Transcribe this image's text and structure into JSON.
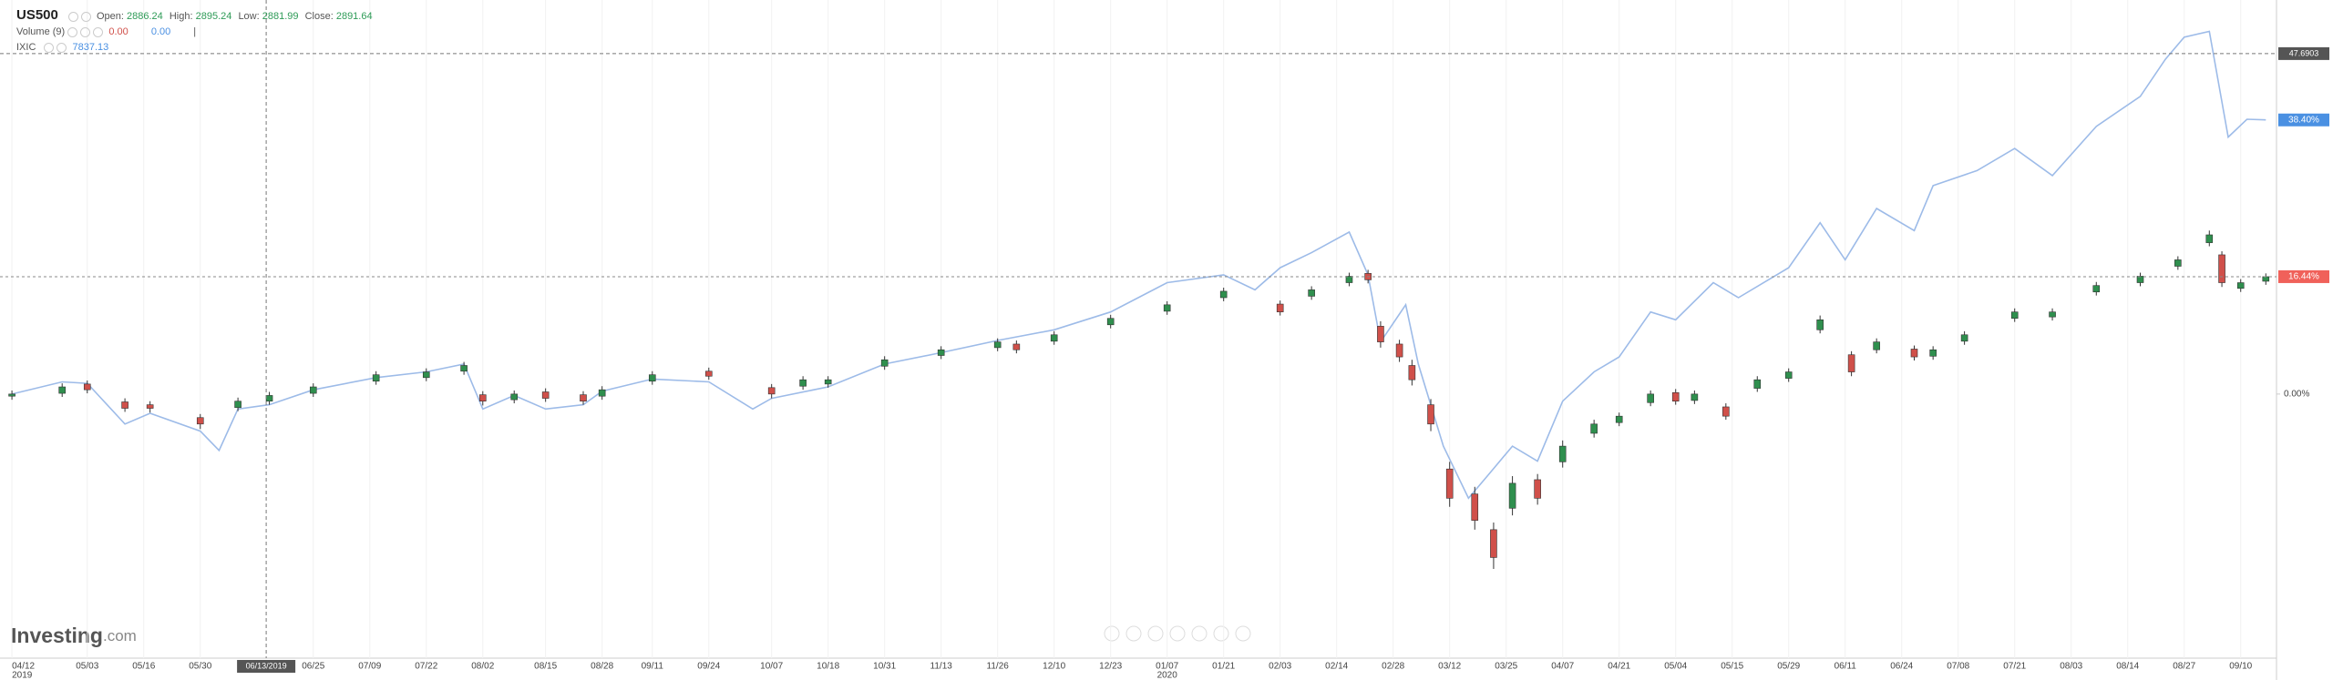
{
  "chart_data": {
    "type": "candlestick",
    "title": "US500",
    "header": {
      "open_label": "Open:",
      "open": 2886.24,
      "high_label": "High:",
      "high": 2895.24,
      "low_label": "Low:",
      "low": 2881.99,
      "close_label": "Close:",
      "close": 2891.64,
      "volume_name": "Volume (9)",
      "volume_values": [
        {
          "value": 0,
          "label": "0.00"
        },
        {
          "value": 0,
          "label": "0.00"
        }
      ],
      "separator": "|"
    },
    "logo_main": "Investing",
    "logo_suffix": ".com",
    "x": [
      0,
      8,
      12,
      18,
      22,
      30,
      36,
      41,
      48,
      58,
      66,
      72,
      75,
      80,
      85,
      91,
      94,
      102,
      111,
      121,
      126,
      130,
      139,
      148,
      157,
      160,
      166,
      175,
      184,
      193,
      202,
      207,
      213,
      216,
      218,
      221,
      223,
      226,
      229,
      233,
      236,
      239,
      243,
      247,
      252,
      256,
      261,
      265,
      268,
      273,
      278,
      283,
      288,
      293,
      297,
      303,
      306,
      311,
      319,
      325,
      332,
      339,
      345,
      350,
      352,
      355,
      359
    ],
    "open": [
      -0.3,
      0.1,
      1.4,
      -1.1,
      -1.5,
      -3.3,
      -1.9,
      -1.0,
      0.1,
      1.8,
      2.3,
      3.2,
      -0.1,
      -0.8,
      0.3,
      -0.1,
      -0.3,
      1.8,
      3.2,
      0.9,
      1.1,
      1.4,
      3.9,
      5.4,
      6.5,
      7.0,
      7.4,
      9.7,
      11.6,
      13.5,
      12.6,
      13.7,
      15.6,
      16.9,
      9.5,
      7.0,
      4.0,
      -1.5,
      -10.5,
      -14.0,
      -19.0,
      -16.0,
      -12.0,
      -9.5,
      -5.5,
      -4.0,
      -1.2,
      0.2,
      -0.9,
      -1.8,
      0.8,
      2.2,
      9.0,
      5.5,
      6.2,
      6.3,
      5.3,
      7.4,
      10.6,
      10.8,
      14.3,
      15.6,
      17.9,
      21.2,
      19.5,
      14.8,
      15.8
    ],
    "high": [
      0.5,
      1.5,
      1.9,
      -0.6,
      -1.0,
      -2.8,
      -0.5,
      0.3,
      1.5,
      3.2,
      3.6,
      4.5,
      0.4,
      0.5,
      0.8,
      0.4,
      1.1,
      3.2,
      3.7,
      1.4,
      2.5,
      2.5,
      5.3,
      6.7,
      7.8,
      7.5,
      8.8,
      11.1,
      13.0,
      14.9,
      13.1,
      15.1,
      17.0,
      17.4,
      10.2,
      7.6,
      4.8,
      -0.7,
      -9.5,
      -13.0,
      -18.0,
      -11.5,
      -11.2,
      -6.5,
      -3.6,
      -2.6,
      0.5,
      0.7,
      0.5,
      -1.3,
      2.5,
      3.6,
      11.0,
      6.0,
      7.8,
      6.8,
      6.7,
      8.8,
      12.0,
      12.0,
      15.7,
      17.0,
      19.3,
      22.9,
      20.0,
      16.1,
      16.9
    ],
    "low": [
      -0.8,
      -0.4,
      0.1,
      -2.5,
      -2.6,
      -4.9,
      -2.4,
      -1.5,
      -0.4,
      1.3,
      1.8,
      2.7,
      -1.6,
      -1.3,
      -1.1,
      -1.5,
      -0.8,
      1.3,
      2.0,
      -0.6,
      0.6,
      0.9,
      3.4,
      4.9,
      6.0,
      5.7,
      6.9,
      9.2,
      11.1,
      13.0,
      11.0,
      13.2,
      15.1,
      15.5,
      6.5,
      4.5,
      1.2,
      -5.2,
      -15.8,
      -19.0,
      -24.5,
      -17.0,
      -15.5,
      -10.3,
      -6.1,
      -4.5,
      -1.7,
      -1.5,
      -1.4,
      -3.6,
      0.3,
      1.7,
      8.5,
      2.5,
      5.7,
      4.7,
      4.8,
      6.9,
      10.1,
      10.3,
      13.8,
      15.1,
      17.4,
      20.7,
      15.0,
      14.3,
      15.3
    ],
    "close": [
      0,
      1,
      0.6,
      -2,
      -2,
      -4.2,
      -1,
      -0.2,
      1,
      2.7,
      3.1,
      4,
      -1,
      0,
      -0.6,
      -1,
      0.6,
      2.7,
      2.5,
      0,
      2,
      2,
      4.8,
      6.2,
      7.3,
      6.2,
      8.3,
      10.6,
      12.5,
      14.4,
      11.5,
      14.6,
      16.5,
      16,
      7.3,
      5.2,
      2,
      -4.2,
      -14.6,
      -17.7,
      -22.9,
      -12.5,
      -14.6,
      -7.3,
      -4.2,
      -3.1,
      0,
      -1,
      0,
      -3.1,
      2,
      3.1,
      10.4,
      3.1,
      7.3,
      5.2,
      6.2,
      8.3,
      11.5,
      11.5,
      15.2,
      16.5,
      18.8,
      22.3,
      15.6,
      15.6,
      16.44
    ],
    "close_last_label": "16.44%",
    "up_color": "#2f8f4e",
    "down_color": "#d0504a",
    "last_color": "#f0615a",
    "series": [
      {
        "name": "IXIC",
        "color": "#9dbbe8",
        "legend_value": 7837.13,
        "last_label": "38.40%",
        "badge_color": "#4a90e2",
        "x": [
          0,
          8,
          12,
          18,
          22,
          30,
          33,
          36,
          41,
          48,
          58,
          66,
          72,
          75,
          80,
          85,
          91,
          94,
          102,
          111,
          118,
          121,
          130,
          139,
          148,
          157,
          166,
          175,
          184,
          193,
          198,
          202,
          207,
          213,
          216,
          218,
          222,
          224,
          228,
          232,
          235,
          239,
          243,
          247,
          252,
          256,
          261,
          265,
          271,
          275,
          283,
          288,
          292,
          297,
          303,
          306,
          313,
          319,
          325,
          332,
          339,
          343,
          346,
          350,
          353,
          356,
          359
        ],
        "values": [
          0,
          1.7,
          1.5,
          -4.2,
          -2.7,
          -5.2,
          -7.9,
          -2.1,
          -1.5,
          0.6,
          2.3,
          3.1,
          4.2,
          -2.1,
          -0.2,
          -2.1,
          -1.5,
          0.4,
          2.1,
          1.7,
          -2.1,
          -0.6,
          1.0,
          4.2,
          5.8,
          7.5,
          9.0,
          11.5,
          15.6,
          16.7,
          14.6,
          17.7,
          19.8,
          22.7,
          16.7,
          7.3,
          12.5,
          4.2,
          -7.3,
          -14.6,
          -11.5,
          -7.3,
          -9.4,
          -1.0,
          3.1,
          5.2,
          11.5,
          10.4,
          15.6,
          13.5,
          17.7,
          24.0,
          18.8,
          26.0,
          22.9,
          29.2,
          31.3,
          34.4,
          30.6,
          37.5,
          41.7,
          46.9,
          50.0,
          50.8,
          36.0,
          38.5,
          38.4
        ]
      }
    ],
    "xlim": [
      -1.9,
      360.7
    ],
    "ylim": [
      -37,
      55.2
    ],
    "yticks": [
      {
        "value": 0,
        "label": "0.00%"
      }
    ],
    "xticks": [
      {
        "value": 0,
        "label": "04/12"
      },
      {
        "value": 12,
        "label": "05/03"
      },
      {
        "value": 21,
        "label": "05/16"
      },
      {
        "value": 30,
        "label": "05/30"
      },
      {
        "value": 48,
        "label": "06/25"
      },
      {
        "value": 57,
        "label": "07/09"
      },
      {
        "value": 66,
        "label": "07/22"
      },
      {
        "value": 75,
        "label": "08/02"
      },
      {
        "value": 85,
        "label": "08/15"
      },
      {
        "value": 94,
        "label": "08/28"
      },
      {
        "value": 102,
        "label": "09/11"
      },
      {
        "value": 111,
        "label": "09/24"
      },
      {
        "value": 121,
        "label": "10/07"
      },
      {
        "value": 130,
        "label": "10/18"
      },
      {
        "value": 139,
        "label": "10/31"
      },
      {
        "value": 148,
        "label": "11/13"
      },
      {
        "value": 157,
        "label": "11/26"
      },
      {
        "value": 166,
        "label": "12/10"
      },
      {
        "value": 175,
        "label": "12/23"
      },
      {
        "value": 184,
        "label": "01/07"
      },
      {
        "value": 193,
        "label": "01/21"
      },
      {
        "value": 202,
        "label": "02/03"
      },
      {
        "value": 211,
        "label": "02/14"
      },
      {
        "value": 220,
        "label": "02/28"
      },
      {
        "value": 229,
        "label": "03/12"
      },
      {
        "value": 238,
        "label": "03/25"
      },
      {
        "value": 247,
        "label": "04/07"
      },
      {
        "value": 256,
        "label": "04/21"
      },
      {
        "value": 265,
        "label": "05/04"
      },
      {
        "value": 274,
        "label": "05/15"
      },
      {
        "value": 283,
        "label": "05/29"
      },
      {
        "value": 292,
        "label": "06/11"
      },
      {
        "value": 301,
        "label": "06/24"
      },
      {
        "value": 310,
        "label": "07/08"
      },
      {
        "value": 319,
        "label": "07/21"
      },
      {
        "value": 328,
        "label": "08/03"
      },
      {
        "value": 337,
        "label": "08/14"
      },
      {
        "value": 346,
        "label": "08/27"
      },
      {
        "value": 355,
        "label": "09/10"
      }
    ],
    "year_labels": [
      {
        "value": 0,
        "label": "2019"
      },
      {
        "value": 184,
        "label": "2020"
      }
    ],
    "crosshair": {
      "x": {
        "value": 40.5,
        "label": "06/13/2019"
      },
      "y": 47.6903
    },
    "grid": true
  }
}
